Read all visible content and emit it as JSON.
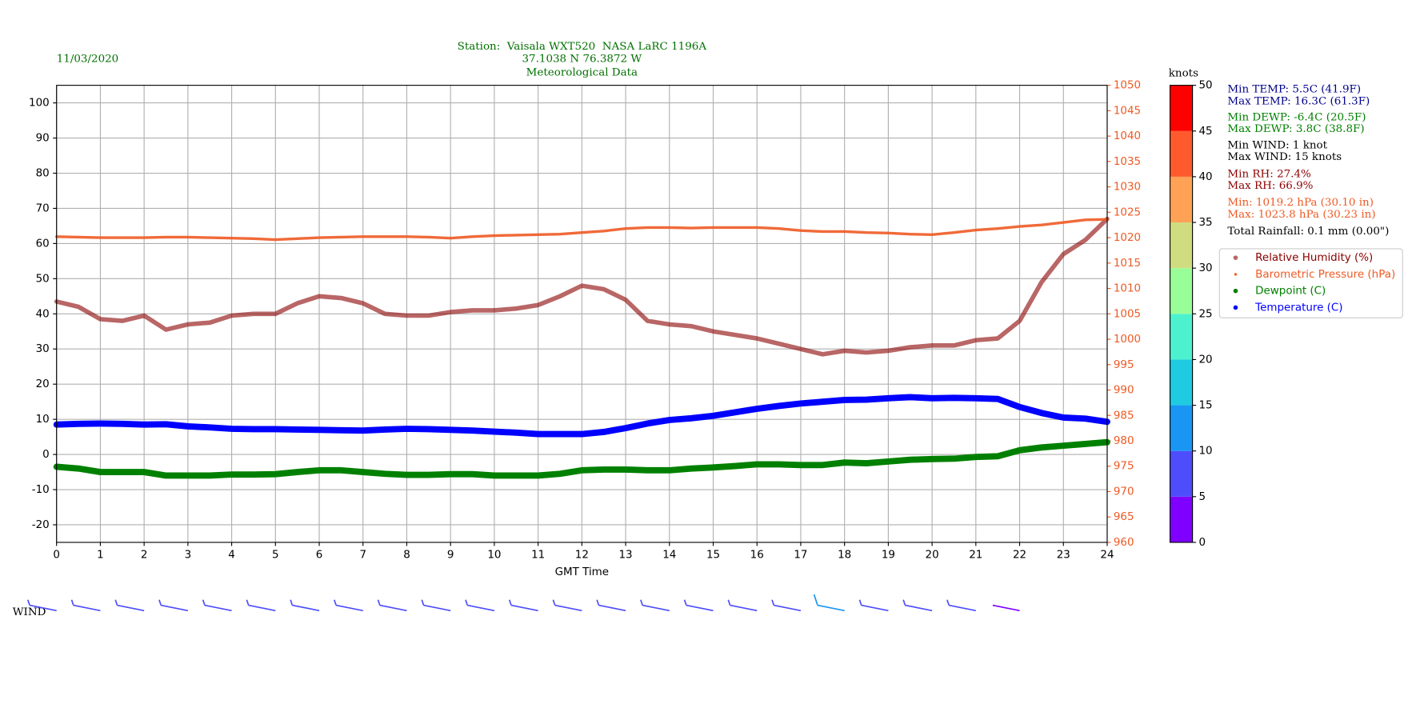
{
  "chart_data": {
    "type": "line",
    "date": "11/03/2020",
    "title": [
      "Station:  Vaisala WXT520  NASA LaRC 1196A",
      "37.1038 N 76.3872 W",
      "Meteorological Data"
    ],
    "x_label": "GMT Time",
    "xlim": [
      0,
      24
    ],
    "xticks": [
      0,
      1,
      2,
      3,
      4,
      5,
      6,
      7,
      8,
      9,
      10,
      11,
      12,
      13,
      14,
      15,
      16,
      17,
      18,
      19,
      20,
      21,
      22,
      23,
      24
    ],
    "ylim": [
      -25,
      105
    ],
    "yticks": [
      -20,
      -10,
      0,
      10,
      20,
      30,
      40,
      50,
      60,
      70,
      80,
      90,
      100
    ],
    "y2lim": [
      960,
      1050
    ],
    "y2ticks": [
      960,
      965,
      970,
      975,
      980,
      985,
      990,
      995,
      1000,
      1005,
      1010,
      1015,
      1020,
      1025,
      1030,
      1035,
      1040,
      1045,
      1050
    ],
    "y2color": "#ee5a24",
    "grid": true,
    "x": [
      0,
      0.5,
      1,
      1.5,
      2,
      2.5,
      3,
      3.5,
      4,
      4.5,
      5,
      5.5,
      6,
      6.5,
      7,
      7.5,
      8,
      8.5,
      9,
      9.5,
      10,
      10.5,
      11,
      11.5,
      12,
      12.5,
      13,
      13.5,
      14,
      14.5,
      15,
      15.5,
      16,
      16.5,
      17,
      17.5,
      18,
      18.5,
      19,
      19.5,
      20,
      20.5,
      21,
      21.5,
      22,
      22.5,
      23,
      23.5,
      24
    ],
    "series": [
      {
        "name": "Relative Humidity (%)",
        "color": "#8b0000",
        "values": [
          43.5,
          42,
          38.5,
          38,
          39.5,
          35.5,
          37,
          37.5,
          39.5,
          40,
          40,
          43,
          45,
          44.5,
          43,
          40,
          39.5,
          39.5,
          40.5,
          41,
          41,
          41.5,
          42.5,
          45,
          48,
          47,
          44,
          38,
          37,
          36.5,
          35,
          34,
          33,
          31.5,
          30,
          28.5,
          29.5,
          29,
          29.5,
          30.5,
          31,
          31,
          32.5,
          33,
          38,
          49,
          57,
          61,
          67
        ]
      },
      {
        "name": "Barometric Pressure (hPa)",
        "color": "#ee5a24",
        "axis": "y2",
        "values": [
          1020.2,
          1020.1,
          1020,
          1020,
          1020,
          1020.1,
          1020.1,
          1020,
          1019.9,
          1019.8,
          1019.6,
          1019.8,
          1020,
          1020.1,
          1020.2,
          1020.2,
          1020.2,
          1020.1,
          1019.9,
          1020.2,
          1020.4,
          1020.5,
          1020.6,
          1020.7,
          1021,
          1021.3,
          1021.8,
          1022,
          1022,
          1021.9,
          1022,
          1022,
          1022,
          1021.8,
          1021.4,
          1021.2,
          1021.2,
          1021,
          1020.9,
          1020.7,
          1020.6,
          1021,
          1021.5,
          1021.8,
          1022.2,
          1022.5,
          1023,
          1023.5,
          1023.6
        ]
      },
      {
        "name": "Dewpoint (C)",
        "color": "#008000",
        "values": [
          -3.5,
          -4,
          -5,
          -5,
          -5,
          -6,
          -6,
          -6,
          -5.7,
          -5.7,
          -5.6,
          -5,
          -4.5,
          -4.5,
          -5,
          -5.5,
          -5.8,
          -5.8,
          -5.6,
          -5.6,
          -6,
          -6,
          -6,
          -5.5,
          -4.5,
          -4.3,
          -4.3,
          -4.5,
          -4.5,
          -4,
          -3.7,
          -3.3,
          -2.8,
          -2.8,
          -3,
          -3,
          -2.3,
          -2.5,
          -2,
          -1.5,
          -1.3,
          -1.2,
          -0.7,
          -0.5,
          1.2,
          2,
          2.5,
          3,
          3.5
        ]
      },
      {
        "name": "Temperature (C)",
        "color": "#0000ff",
        "values": [
          8.5,
          8.7,
          8.8,
          8.7,
          8.5,
          8.6,
          8.0,
          7.7,
          7.3,
          7.2,
          7.2,
          7.1,
          7.0,
          6.9,
          6.8,
          7.1,
          7.3,
          7.2,
          7.0,
          6.8,
          6.5,
          6.2,
          5.8,
          5.8,
          5.8,
          6.4,
          7.5,
          8.8,
          9.8,
          10.3,
          11.0,
          12.0,
          13.0,
          13.8,
          14.5,
          15.0,
          15.5,
          15.6,
          16.0,
          16.3,
          16.0,
          16.1,
          16.0,
          15.8,
          13.5,
          11.8,
          10.5,
          10.2,
          9.3
        ]
      }
    ],
    "stats": [
      {
        "text": "Min TEMP: 5.5C (41.9F)",
        "color": "#00008b"
      },
      {
        "text": "Max TEMP: 16.3C (61.3F)",
        "color": "#00008b"
      },
      {
        "text": "Min DEWP: -6.4C (20.5F)",
        "color": "#008000"
      },
      {
        "text": "Max DEWP: 3.8C (38.8F)",
        "color": "#008000"
      },
      {
        "text": "Min WIND: 1 knot",
        "color": "#000000"
      },
      {
        "text": "Max WIND: 15 knots",
        "color": "#000000"
      },
      {
        "text": "Min RH: 27.4%",
        "color": "#8b0000"
      },
      {
        "text": "Max RH: 66.9%",
        "color": "#8b0000"
      },
      {
        "text": "Min: 1019.2 hPa (30.10 in)",
        "color": "#ee5a24"
      },
      {
        "text": "Max: 1023.8 hPa (30.23 in)",
        "color": "#ee5a24"
      },
      {
        "text": "Total Rainfall: 0.1 mm (0.00\")",
        "color": "#000000"
      }
    ],
    "colorbar": {
      "label": "knots",
      "lim": [
        0,
        50
      ],
      "ticks": [
        0,
        5,
        10,
        15,
        20,
        25,
        30,
        35,
        40,
        45,
        50
      ],
      "colors": [
        "#8000ff",
        "#4d4dfc",
        "#1996f3",
        "#1ecbe0",
        "#4cf2ce",
        "#99fd98",
        "#cfdd80",
        "#ffa256",
        "#ff5a2d",
        "#ff0000"
      ]
    },
    "wind": {
      "label": "WIND",
      "x": [
        0,
        1,
        2,
        3,
        4,
        5,
        6,
        7,
        8,
        9,
        10,
        11,
        12,
        13,
        14,
        15,
        16,
        17,
        18,
        19,
        20,
        21,
        22
      ],
      "speeds": [
        6,
        7,
        8,
        7,
        6,
        7,
        8,
        7,
        6,
        8,
        9,
        8,
        7,
        6,
        7,
        8,
        7,
        9,
        10,
        9,
        8,
        6,
        3
      ]
    }
  }
}
